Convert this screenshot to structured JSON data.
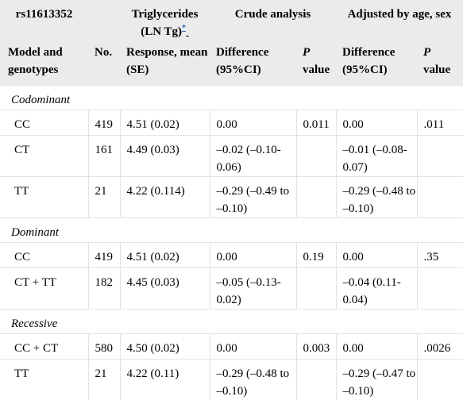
{
  "header_row1": {
    "snp": "rs11613352",
    "trait_line1": "Triglycerides",
    "trait_line2": "(LN Tg)",
    "trait_footnote": "*",
    "crude": "Crude analysis",
    "adjusted": "Adjusted by age, sex"
  },
  "header_row2": {
    "model": "Model and genotypes",
    "no": "No.",
    "response": "Response, mean (SE)",
    "difference_crude": "Difference (95%CI)",
    "p_crude_italic": "P",
    "p_crude_rest": "value",
    "difference_adj": "Difference (95%CI)",
    "p_adj_italic": "P",
    "p_adj_rest": "value"
  },
  "sections": [
    {
      "title": "Codominant",
      "rows": [
        {
          "genotype": "CC",
          "n": "419",
          "response": "4.51 (0.02)",
          "diff_crude": "0.00",
          "p_crude": "0.011",
          "diff_adj": "0.00",
          "p_adj": ".011"
        },
        {
          "genotype": "CT",
          "n": "161",
          "response": "4.49 (0.03)",
          "diff_crude": "–0.02 (–0.10-0.06)",
          "p_crude": "",
          "diff_adj": "–0.01 (–0.08-0.07)",
          "p_adj": ""
        },
        {
          "genotype": "TT",
          "n": "21",
          "response": "4.22 (0.114)",
          "diff_crude": "–0.29 (–0.49 to –0.10)",
          "p_crude": "",
          "diff_adj": "–0.29 (–0.48 to –0.10)",
          "p_adj": ""
        }
      ]
    },
    {
      "title": "Dominant",
      "rows": [
        {
          "genotype": "CC",
          "n": "419",
          "response": "4.51 (0.02)",
          "diff_crude": "0.00",
          "p_crude": "0.19",
          "diff_adj": "0.00",
          "p_adj": ".35"
        },
        {
          "genotype": "CT + TT",
          "n": "182",
          "response": "4.45 (0.03)",
          "diff_crude": "–0.05 (–0.13-0.02)",
          "p_crude": "",
          "diff_adj": "–0.04 (0.11-0.04)",
          "p_adj": ""
        }
      ]
    },
    {
      "title": "Recessive",
      "rows": [
        {
          "genotype": "CC + CT",
          "n": "580",
          "response": "4.50 (0.02)",
          "diff_crude": "0.00",
          "p_crude": "0.003",
          "diff_adj": "0.00",
          "p_adj": ".0026"
        },
        {
          "genotype": "TT",
          "n": "21",
          "response": "4.22 (0.11)",
          "diff_crude": "–0.29 (–0.48 to –0.10)",
          "p_crude": "",
          "diff_adj": "–0.29 (–0.47 to –0.10)",
          "p_adj": ""
        }
      ]
    }
  ]
}
